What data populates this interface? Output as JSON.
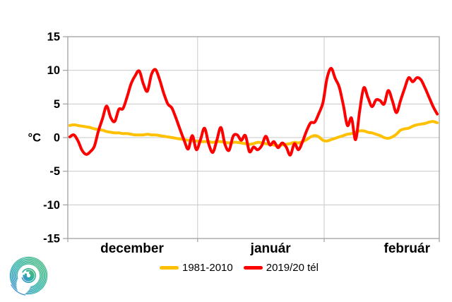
{
  "chart_data": {
    "type": "line",
    "title": "",
    "ylabel": "°C",
    "ylim": [
      -15,
      15
    ],
    "yticks": [
      15,
      10,
      5,
      0,
      -5,
      -10,
      -15
    ],
    "grid": true,
    "legend_position": "bottom-center",
    "x_axis": {
      "kind": "daily",
      "months": [
        {
          "label": "december",
          "days": 31
        },
        {
          "label": "január",
          "days": 31
        },
        {
          "label": "február",
          "days": 29
        }
      ]
    },
    "series": [
      {
        "name": "1981-2010",
        "color": "#FFC000",
        "line_width": 4,
        "values": [
          1.8,
          1.9,
          1.8,
          1.7,
          1.6,
          1.5,
          1.3,
          1.2,
          1.1,
          0.9,
          0.8,
          0.7,
          0.7,
          0.6,
          0.6,
          0.5,
          0.4,
          0.4,
          0.4,
          0.5,
          0.4,
          0.4,
          0.3,
          0.2,
          0.1,
          0.0,
          -0.1,
          -0.2,
          -0.3,
          -0.4,
          -0.5,
          -0.5,
          -0.6,
          -0.6,
          -0.6,
          -0.7,
          -0.6,
          -0.6,
          -0.7,
          -0.8,
          -0.7,
          -0.7,
          -0.8,
          -0.9,
          -1.0,
          -0.9,
          -0.7,
          -0.8,
          -0.9,
          -1.0,
          -1.1,
          -1.2,
          -1.1,
          -1.0,
          -0.9,
          -0.7,
          -0.8,
          -0.6,
          -0.3,
          0.1,
          0.3,
          0.1,
          -0.4,
          -0.5,
          -0.3,
          -0.1,
          0.1,
          0.3,
          0.5,
          0.6,
          0.8,
          1.0,
          1.0,
          0.8,
          0.7,
          0.5,
          0.3,
          0.0,
          -0.1,
          0.1,
          0.5,
          1.1,
          1.3,
          1.4,
          1.7,
          1.9,
          2.0,
          2.1,
          2.3,
          2.4,
          2.2
        ]
      },
      {
        "name": "2019/20 tél",
        "color": "#FF0000",
        "line_width": 4,
        "values": [
          0.1,
          0.4,
          -0.5,
          -1.9,
          -2.5,
          -2.1,
          -1.3,
          1.0,
          2.8,
          4.7,
          3.0,
          2.4,
          4.2,
          4.3,
          6.0,
          8.0,
          9.2,
          9.9,
          8.0,
          6.9,
          9.4,
          10.1,
          8.6,
          6.6,
          5.0,
          4.4,
          2.9,
          1.2,
          -0.4,
          -1.7,
          0.3,
          -1.8,
          -0.3,
          1.4,
          -0.9,
          -2.2,
          -0.4,
          1.5,
          -1.0,
          -1.9,
          0.2,
          0.4,
          -0.4,
          0.3,
          -2.1,
          -1.4,
          -1.8,
          -1.2,
          0.2,
          -1.1,
          -0.6,
          -1.5,
          -0.8,
          -1.4,
          -2.6,
          -0.9,
          -1.8,
          -0.6,
          1.0,
          2.2,
          2.3,
          3.6,
          5.2,
          8.8,
          10.3,
          8.8,
          7.5,
          4.8,
          1.8,
          2.9,
          -0.3,
          4.0,
          7.4,
          6.0,
          4.6,
          5.6,
          5.5,
          5.0,
          7.0,
          5.5,
          3.7,
          5.5,
          7.3,
          8.9,
          8.3,
          8.9,
          8.6,
          7.4,
          6.0,
          4.6,
          3.5
        ]
      }
    ]
  },
  "logo": {
    "name": "meteorological-service-spiral-logo",
    "colors": [
      "#45b97c",
      "#29b0a5",
      "#3a8fd1"
    ]
  }
}
